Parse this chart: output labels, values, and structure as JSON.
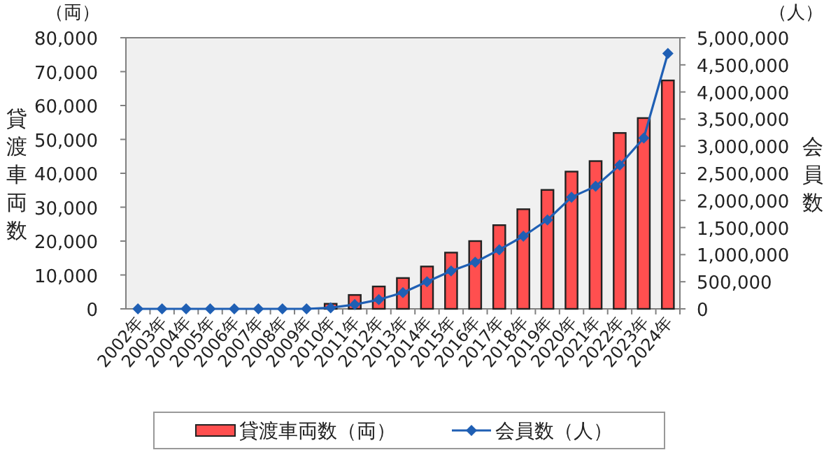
{
  "chart_data": {
    "type": "bar",
    "categories": [
      "2002年",
      "2003年",
      "2004年",
      "2005年",
      "2006年",
      "2007年",
      "2008年",
      "2009年",
      "2010年",
      "2011年",
      "2012年",
      "2013年",
      "2014年",
      "2015年",
      "2016年",
      "2017年",
      "2018年",
      "2019年",
      "2020年",
      "2021年",
      "2022年",
      "2023年",
      "2024年"
    ],
    "series": [
      {
        "name": "貸渡車両数（両）",
        "color": "#ff4f4f",
        "values": [
          0,
          0,
          0,
          0,
          0,
          0,
          0,
          0,
          1500,
          4100,
          6600,
          9100,
          12500,
          16600,
          20000,
          24700,
          29400,
          35100,
          40500,
          43600,
          51900,
          56300,
          67400
        ]
      },
      {
        "name": "会員数（人）",
        "type": "line",
        "axis": "y2",
        "color": "#1f5fb4",
        "marker": "diamond",
        "values": [
          0,
          0,
          0,
          0,
          0,
          0,
          0,
          0,
          20000,
          80000,
          170000,
          300000,
          500000,
          700000,
          860000,
          1090000,
          1340000,
          1640000,
          2060000,
          2260000,
          2650000,
          3150000,
          4710000
        ]
      }
    ],
    "ylabel": "貸渡車両数",
    "y2label": "会員数",
    "annotations": [
      "（両）",
      "（人）"
    ],
    "ylim": [
      0,
      80000
    ],
    "yticks": [
      0,
      {
        "value": 10000,
        "label": "10,000"
      },
      {
        "value": 20000,
        "label": "20,000"
      },
      {
        "value": 30000,
        "label": "30,000"
      },
      {
        "value": 40000,
        "label": "40,000"
      },
      {
        "value": 50000,
        "label": "50,000"
      },
      {
        "value": 60000,
        "label": "60,000"
      },
      {
        "value": 70000,
        "label": "70,000"
      },
      {
        "value": 80000,
        "label": "80,000"
      }
    ],
    "y2lim": [
      0,
      5000000
    ],
    "y2ticks": [
      0,
      {
        "value": 500000,
        "label": "500,000"
      },
      {
        "value": 1000000,
        "label": "1,000,000"
      },
      {
        "value": 1500000,
        "label": "1,500,000"
      },
      {
        "value": 2000000,
        "label": "2,000,000"
      },
      {
        "value": 2500000,
        "label": "2,500,000"
      },
      {
        "value": 3000000,
        "label": "3,000,000"
      },
      {
        "value": 3500000,
        "label": "3,500,000"
      },
      {
        "value": 4000000,
        "label": "4,000,000"
      },
      {
        "value": 4500000,
        "label": "4,500,000"
      },
      {
        "value": 5000000,
        "label": "5,000,000"
      }
    ],
    "legend": "bottom",
    "grid": false
  }
}
